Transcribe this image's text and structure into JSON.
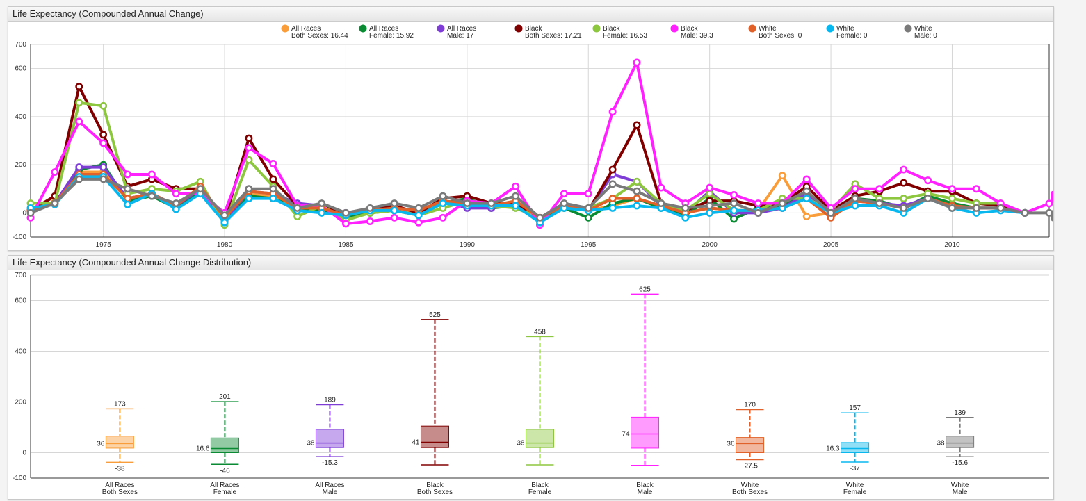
{
  "line_panel": {
    "title": "Life Expectancy (Compounded Annual Change)"
  },
  "box_panel": {
    "title": "Life Expectancy (Compounded Annual Change Distribution)"
  },
  "colors": [
    "#f99d3a",
    "#0b8a34",
    "#7e3ed6",
    "#800000",
    "#8dc63f",
    "#ff22ff",
    "#e0622a",
    "#08b7ee",
    "#7a7a7a"
  ],
  "chart_data": [
    {
      "type": "line",
      "title": "Life Expectancy (Compounded Annual Change)",
      "ylim": [
        -100,
        700
      ],
      "yticks": [
        -100,
        0,
        200,
        400,
        600,
        700
      ],
      "xlim": [
        1972,
        2014
      ],
      "xticks": [
        1975,
        1980,
        1985,
        1990,
        1995,
        2000,
        2005,
        2010
      ],
      "grid": true,
      "legend_position": "top-center",
      "x": [
        1972,
        1973,
        1974,
        1975,
        1976,
        1977,
        1978,
        1979,
        1980,
        1981,
        1982,
        1983,
        1984,
        1985,
        1986,
        1987,
        1988,
        1989,
        1990,
        1991,
        1992,
        1993,
        1994,
        1995,
        1996,
        1997,
        1998,
        1999,
        2000,
        2001,
        2002,
        2003,
        2004,
        2005,
        2006,
        2007,
        2008,
        2009,
        2010,
        2011,
        2012,
        2013,
        2014
      ],
      "series": [
        {
          "legend_line1": "All Races",
          "legend_line2": "Both Sexes: 16.44",
          "values": [
            10,
            45,
            170,
            170,
            60,
            80,
            30,
            110,
            -30,
            80,
            70,
            25,
            20,
            -10,
            10,
            20,
            0,
            50,
            40,
            30,
            40,
            -20,
            30,
            10,
            30,
            60,
            30,
            0,
            20,
            10,
            10,
            155,
            -15,
            0,
            50,
            40,
            20,
            60,
            30,
            20,
            20,
            0,
            null
          ]
        },
        {
          "legend_line1": "All Races",
          "legend_line2": "Female: 15.92",
          "values": [
            10,
            40,
            180,
            200,
            50,
            70,
            20,
            90,
            -40,
            70,
            60,
            20,
            10,
            -20,
            0,
            10,
            -10,
            40,
            60,
            20,
            30,
            -20,
            20,
            -20,
            40,
            60,
            20,
            -10,
            60,
            -25,
            20,
            30,
            80,
            0,
            60,
            50,
            20,
            70,
            40,
            20,
            20,
            0,
            null
          ]
        },
        {
          "legend_line1": "All Races",
          "legend_line2": "Male: 17",
          "values": [
            10,
            40,
            190,
            190,
            60,
            80,
            30,
            100,
            -30,
            90,
            80,
            40,
            30,
            0,
            10,
            20,
            10,
            50,
            20,
            20,
            50,
            -20,
            30,
            10,
            160,
            130,
            30,
            0,
            90,
            0,
            0,
            20,
            80,
            0,
            50,
            40,
            30,
            60,
            30,
            20,
            20,
            0,
            null
          ]
        },
        {
          "legend_line1": "Black",
          "legend_line2": "Both Sexes: 17.21",
          "values": [
            10,
            70,
            525,
            325,
            110,
            140,
            100,
            100,
            -30,
            310,
            140,
            30,
            30,
            -10,
            10,
            30,
            0,
            60,
            70,
            40,
            40,
            -20,
            30,
            10,
            180,
            365,
            40,
            10,
            50,
            50,
            30,
            40,
            110,
            10,
            70,
            90,
            125,
            90,
            90,
            40,
            30,
            0,
            null
          ]
        },
        {
          "legend_line1": "Black",
          "legend_line2": "Female: 16.53",
          "values": [
            40,
            40,
            458,
            445,
            80,
            100,
            90,
            130,
            -50,
            220,
            110,
            -15,
            30,
            -30,
            0,
            10,
            -10,
            20,
            50,
            30,
            20,
            -20,
            30,
            20,
            60,
            130,
            40,
            10,
            80,
            10,
            10,
            60,
            60,
            10,
            120,
            60,
            60,
            80,
            60,
            40,
            40,
            0,
            null
          ]
        },
        {
          "legend_line1": "Black",
          "legend_line2": "Male: 39.3",
          "values": [
            -20,
            170,
            380,
            290,
            160,
            160,
            80,
            80,
            0,
            270,
            205,
            30,
            30,
            -45,
            -35,
            -20,
            -40,
            -20,
            50,
            40,
            110,
            -50,
            80,
            80,
            420,
            625,
            105,
            40,
            105,
            75,
            40,
            40,
            140,
            20,
            100,
            100,
            180,
            135,
            100,
            100,
            40,
            0,
            39
          ]
        },
        {
          "legend_line1": "White",
          "legend_line2": "Both Sexes: 0",
          "values": [
            10,
            40,
            160,
            160,
            60,
            80,
            30,
            110,
            -20,
            90,
            80,
            20,
            20,
            -10,
            10,
            20,
            10,
            50,
            40,
            30,
            50,
            -20,
            30,
            10,
            60,
            60,
            30,
            0,
            20,
            10,
            10,
            20,
            60,
            -20,
            50,
            40,
            20,
            60,
            30,
            20,
            20,
            0,
            null
          ]
        },
        {
          "legend_line1": "White",
          "legend_line2": "Female: 0",
          "values": [
            20,
            35,
            150,
            150,
            35,
            80,
            15,
            80,
            -40,
            60,
            60,
            10,
            0,
            -10,
            10,
            10,
            -10,
            40,
            30,
            30,
            30,
            -40,
            20,
            10,
            20,
            30,
            20,
            -20,
            0,
            10,
            10,
            20,
            60,
            0,
            30,
            30,
            0,
            60,
            20,
            0,
            10,
            0,
            null
          ]
        },
        {
          "legend_line1": "White",
          "legend_line2": "Male: 0",
          "values": [
            0,
            40,
            140,
            140,
            100,
            70,
            40,
            100,
            -10,
            100,
            100,
            20,
            40,
            0,
            20,
            40,
            20,
            70,
            40,
            40,
            70,
            -20,
            40,
            20,
            120,
            90,
            40,
            20,
            30,
            40,
            0,
            40,
            90,
            0,
            60,
            40,
            20,
            60,
            20,
            20,
            20,
            0,
            0
          ]
        }
      ],
      "end_labels": [
        "39",
        "0"
      ]
    },
    {
      "type": "box",
      "title": "Life Expectancy (Compounded Annual Change Distribution)",
      "ylim": [
        -100,
        700
      ],
      "yticks": [
        -100,
        0,
        200,
        400,
        600,
        700
      ],
      "grid": true,
      "boxes": [
        {
          "cat_line1": "All Races",
          "cat_line2": "Both Sexes",
          "min": -38,
          "q1": 18,
          "median": 36,
          "q3": 65,
          "max": 173,
          "min_label": "-38",
          "median_label": "36",
          "max_label": "173"
        },
        {
          "cat_line1": "All Races",
          "cat_line2": "Female",
          "min": -46,
          "q1": 0,
          "median": 16.6,
          "q3": 58,
          "max": 201,
          "min_label": "-46",
          "median_label": "16.6",
          "max_label": "201"
        },
        {
          "cat_line1": "All Races",
          "cat_line2": "Male",
          "min": -15.3,
          "q1": 20,
          "median": 38,
          "q3": 92,
          "max": 189,
          "min_label": "-15.3",
          "median_label": "38",
          "max_label": "189"
        },
        {
          "cat_line1": "Black",
          "cat_line2": "Both Sexes",
          "min": -48,
          "q1": 20,
          "median": 41,
          "q3": 105,
          "max": 525,
          "min_label": "",
          "median_label": "41",
          "max_label": "525"
        },
        {
          "cat_line1": "Black",
          "cat_line2": "Female",
          "min": -48,
          "q1": 20,
          "median": 38,
          "q3": 92,
          "max": 458,
          "min_label": "",
          "median_label": "38",
          "max_label": "458"
        },
        {
          "cat_line1": "Black",
          "cat_line2": "Male",
          "min": -50,
          "q1": 18,
          "median": 74,
          "q3": 140,
          "max": 625,
          "min_label": "",
          "median_label": "74",
          "max_label": "625"
        },
        {
          "cat_line1": "White",
          "cat_line2": "Both Sexes",
          "min": -27.5,
          "q1": 0,
          "median": 36,
          "q3": 60,
          "max": 170,
          "min_label": "-27.5",
          "median_label": "36",
          "max_label": "170"
        },
        {
          "cat_line1": "White",
          "cat_line2": "Female",
          "min": -37,
          "q1": 0,
          "median": 16.3,
          "q3": 40,
          "max": 157,
          "min_label": "-37",
          "median_label": "16.3",
          "max_label": "157"
        },
        {
          "cat_line1": "White",
          "cat_line2": "Male",
          "min": -15.6,
          "q1": 20,
          "median": 38,
          "q3": 65,
          "max": 139,
          "min_label": "-15.6",
          "median_label": "38",
          "max_label": "139"
        }
      ]
    }
  ]
}
